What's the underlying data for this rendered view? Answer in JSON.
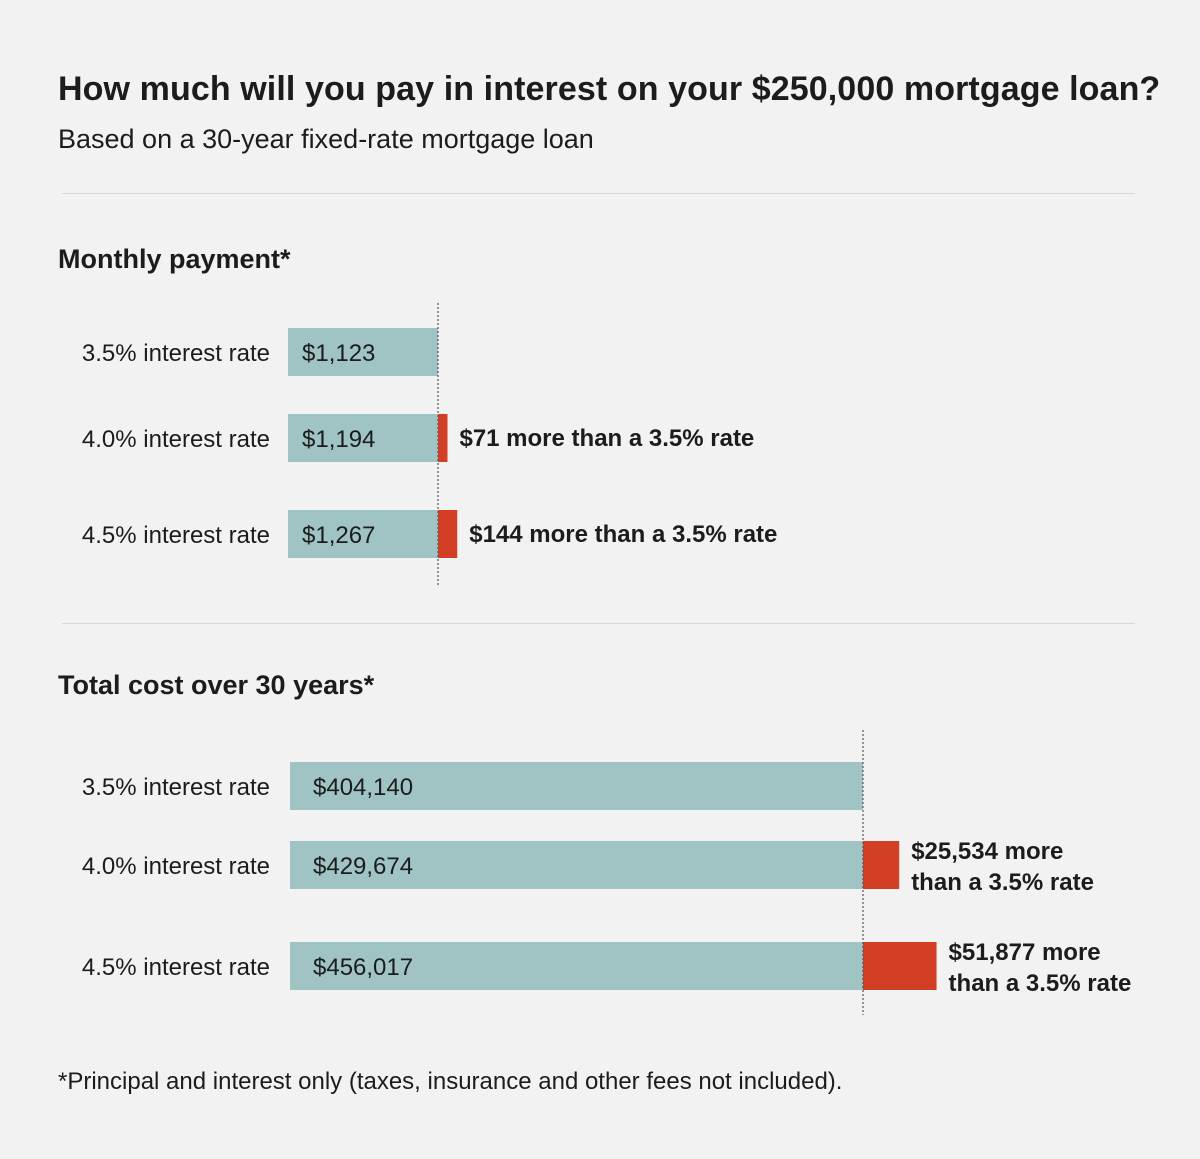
{
  "title": "How much will you pay in interest on your $250,000 mortgage loan?",
  "subtitle": "Based on a 30-year fixed-rate mortgage loan",
  "footnote": "*Principal and interest only (taxes, insurance and other fees not included).",
  "colors": {
    "base_bar": "#9fc4c3",
    "extra_bar": "#d23f24",
    "text": "#1c1c1c",
    "background": "#f2f2f2"
  },
  "chart_data": [
    {
      "type": "bar",
      "title": "Monthly payment*",
      "orientation": "horizontal",
      "stacked": true,
      "categories": [
        "3.5% interest rate",
        "4.0% interest rate",
        "4.5% interest rate"
      ],
      "series": [
        {
          "values": [
            1123,
            1123,
            1123
          ]
        },
        {
          "values": [
            0,
            71,
            144
          ]
        }
      ],
      "bar_labels": [
        "$1,123",
        "$1,194",
        "$1,267"
      ],
      "annotations": [
        "",
        "$71 more than a 3.5% rate",
        "$144 more than a 3.5% rate"
      ],
      "reference_line": 1123
    },
    {
      "type": "bar",
      "title": "Total cost over 30 years*",
      "orientation": "horizontal",
      "stacked": true,
      "categories": [
        "3.5% interest rate",
        "4.0% interest rate",
        "4.5% interest rate"
      ],
      "series": [
        {
          "values": [
            404140,
            404140,
            404140
          ]
        },
        {
          "values": [
            0,
            25534,
            51877
          ]
        }
      ],
      "bar_labels": [
        "$404,140",
        "$429,674",
        "$456,017"
      ],
      "annotations": [
        "",
        [
          "$25,534 more",
          "than a 3.5% rate"
        ],
        [
          "$51,877 more",
          "than a 3.5% rate"
        ]
      ],
      "reference_line": 404140
    }
  ]
}
